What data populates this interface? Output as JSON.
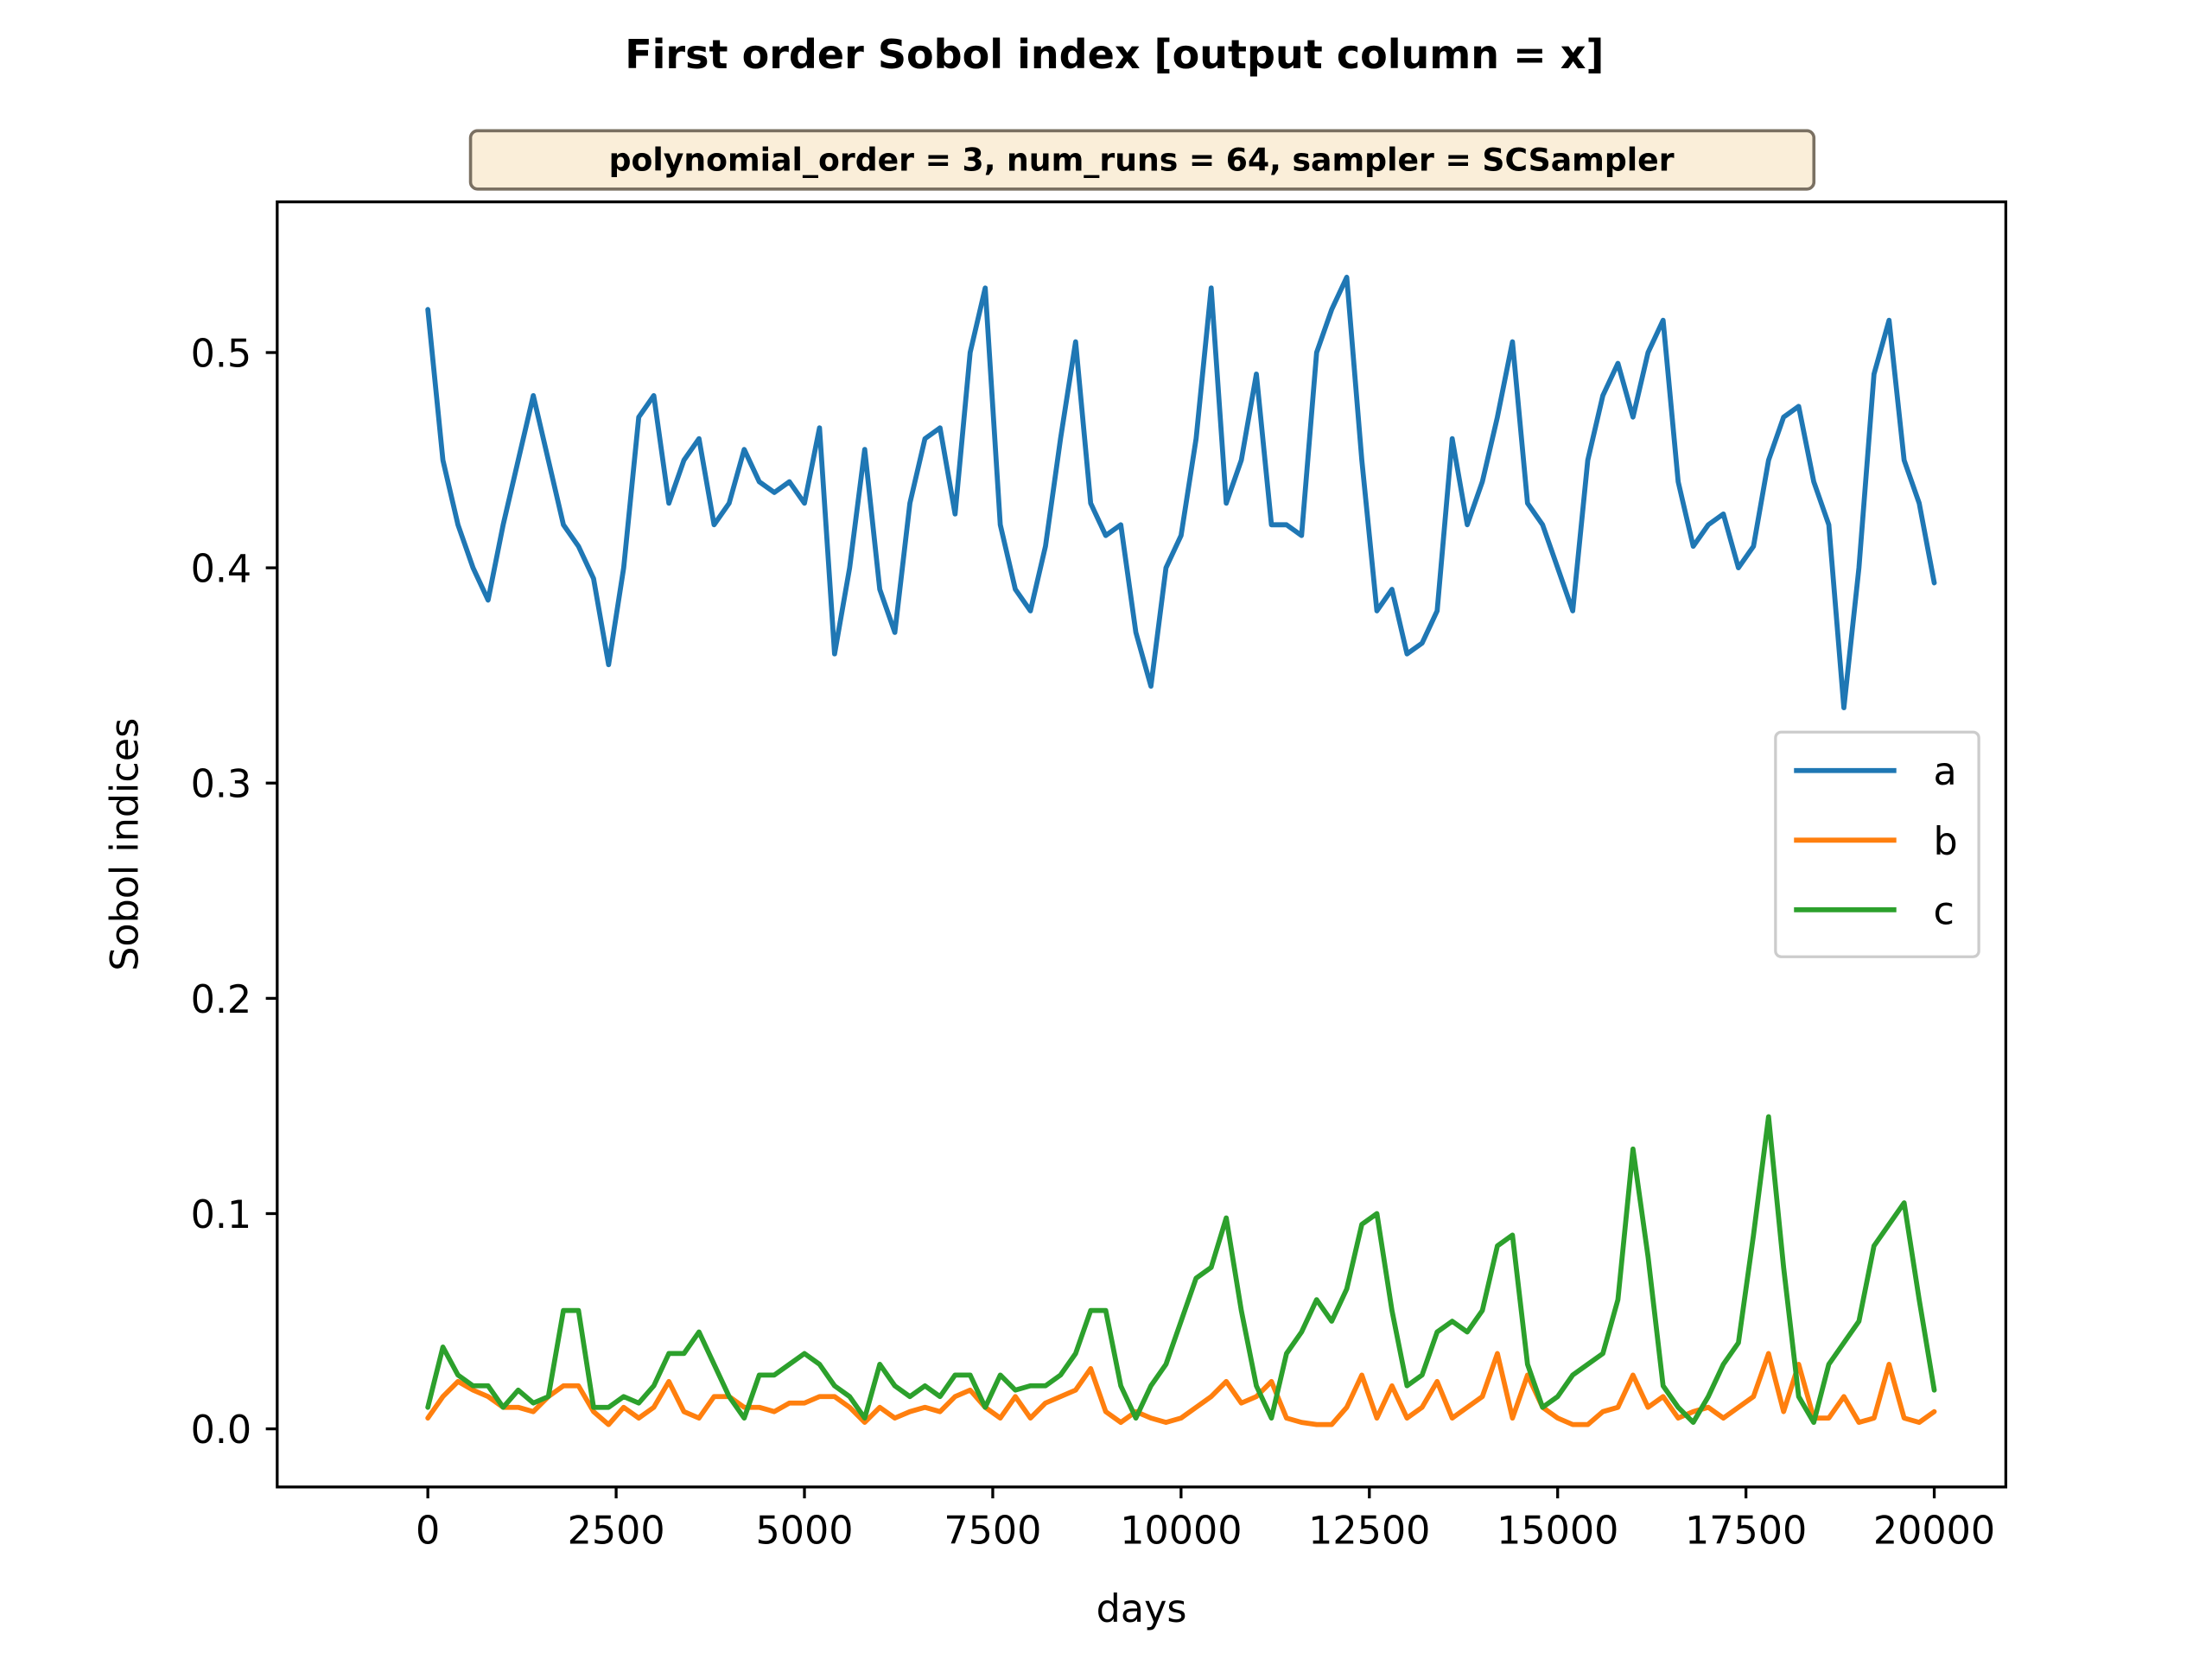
{
  "chart_data": {
    "type": "line",
    "title": "First order Sobol index [output column = x]",
    "subtitle": "polynomial_order = 3, num_runs = 64, sampler = SCSampler",
    "xlabel": "days",
    "ylabel": "Sobol indices",
    "xlim": [
      -2000,
      20950
    ],
    "ylim": [
      -0.027,
      0.57
    ],
    "x_ticks": [
      0,
      2500,
      5000,
      7500,
      10000,
      12500,
      15000,
      17500,
      20000
    ],
    "y_ticks": [
      0.0,
      0.1,
      0.2,
      0.3,
      0.4,
      0.5
    ],
    "x_tick_labels": [
      "0",
      "2500",
      "5000",
      "7500",
      "10000",
      "12500",
      "15000",
      "17500",
      "20000"
    ],
    "y_tick_labels": [
      "0.0",
      "0.1",
      "0.2",
      "0.3",
      "0.4",
      "0.5"
    ],
    "grid": false,
    "legend_position": "right",
    "series": [
      {
        "name": "a",
        "color": "#1f77b4",
        "x": [
          0,
          200,
          400,
          600,
          800,
          1000,
          1200,
          1400,
          1600,
          1800,
          2000,
          2200,
          2400,
          2600,
          2800,
          3000,
          3200,
          3400,
          3600,
          3800,
          4000,
          4200,
          4400,
          4600,
          4800,
          5000,
          5200,
          5400,
          5600,
          5800,
          6000,
          6200,
          6400,
          6600,
          6800,
          7000,
          7200,
          7400,
          7600,
          7800,
          8000,
          8200,
          8400,
          8600,
          8800,
          9000,
          9200,
          9400,
          9600,
          9800,
          10000,
          10200,
          10400,
          10600,
          10800,
          11000,
          11200,
          11400,
          11600,
          11800,
          12000,
          12200,
          12400,
          12600,
          12800,
          13000,
          13200,
          13400,
          13600,
          13800,
          14000,
          14200,
          14400,
          14600,
          14800,
          15000,
          15200,
          15400,
          15600,
          15800,
          16000,
          16200,
          16400,
          16600,
          16800,
          17000,
          17200,
          17400,
          17600,
          17800,
          18000,
          18200,
          18400,
          18600,
          18800,
          19000,
          19200,
          19400,
          19600,
          19800,
          20000
        ],
        "values": [
          0.52,
          0.45,
          0.42,
          0.4,
          0.385,
          0.42,
          0.45,
          0.48,
          0.45,
          0.42,
          0.41,
          0.395,
          0.355,
          0.4,
          0.47,
          0.48,
          0.43,
          0.45,
          0.46,
          0.42,
          0.43,
          0.455,
          0.44,
          0.435,
          0.44,
          0.43,
          0.465,
          0.36,
          0.4,
          0.455,
          0.39,
          0.37,
          0.43,
          0.46,
          0.465,
          0.425,
          0.5,
          0.53,
          0.42,
          0.39,
          0.38,
          0.41,
          0.46,
          0.505,
          0.43,
          0.415,
          0.42,
          0.37,
          0.345,
          0.4,
          0.415,
          0.46,
          0.53,
          0.43,
          0.45,
          0.49,
          0.42,
          0.42,
          0.415,
          0.5,
          0.52,
          0.535,
          0.45,
          0.38,
          0.39,
          0.36,
          0.365,
          0.38,
          0.46,
          0.42,
          0.44,
          0.47,
          0.505,
          0.43,
          0.42,
          0.4,
          0.38,
          0.45,
          0.48,
          0.495,
          0.47,
          0.5,
          0.515,
          0.44,
          0.41,
          0.42,
          0.425,
          0.4,
          0.41,
          0.45,
          0.47,
          0.475,
          0.44,
          0.42,
          0.335,
          0.4,
          0.49,
          0.515,
          0.45,
          0.43,
          0.393
        ]
      },
      {
        "name": "b",
        "color": "#ff7f0e",
        "x": [
          0,
          200,
          400,
          600,
          800,
          1000,
          1200,
          1400,
          1600,
          1800,
          2000,
          2200,
          2400,
          2600,
          2800,
          3000,
          3200,
          3400,
          3600,
          3800,
          4000,
          4200,
          4400,
          4600,
          4800,
          5000,
          5200,
          5400,
          5600,
          5800,
          6000,
          6200,
          6400,
          6600,
          6800,
          7000,
          7200,
          7400,
          7600,
          7800,
          8000,
          8200,
          8400,
          8600,
          8800,
          9000,
          9200,
          9400,
          9600,
          9800,
          10000,
          10200,
          10400,
          10600,
          10800,
          11000,
          11200,
          11400,
          11600,
          11800,
          12000,
          12200,
          12400,
          12600,
          12800,
          13000,
          13200,
          13400,
          13600,
          13800,
          14000,
          14200,
          14400,
          14600,
          14800,
          15000,
          15200,
          15400,
          15600,
          15800,
          16000,
          16200,
          16400,
          16600,
          16800,
          17000,
          17200,
          17400,
          17600,
          17800,
          18000,
          18200,
          18400,
          18600,
          18800,
          19000,
          19200,
          19400,
          19600,
          19800,
          20000
        ],
        "values": [
          0.005,
          0.015,
          0.022,
          0.018,
          0.015,
          0.01,
          0.01,
          0.008,
          0.015,
          0.02,
          0.02,
          0.008,
          0.002,
          0.01,
          0.005,
          0.01,
          0.022,
          0.008,
          0.005,
          0.015,
          0.015,
          0.01,
          0.01,
          0.008,
          0.012,
          0.012,
          0.015,
          0.015,
          0.01,
          0.003,
          0.01,
          0.005,
          0.008,
          0.01,
          0.008,
          0.015,
          0.018,
          0.01,
          0.005,
          0.015,
          0.005,
          0.012,
          0.015,
          0.018,
          0.028,
          0.008,
          0.003,
          0.008,
          0.005,
          0.003,
          0.005,
          0.01,
          0.015,
          0.022,
          0.012,
          0.015,
          0.022,
          0.005,
          0.003,
          0.002,
          0.002,
          0.01,
          0.025,
          0.005,
          0.02,
          0.005,
          0.01,
          0.022,
          0.005,
          0.01,
          0.015,
          0.035,
          0.005,
          0.025,
          0.01,
          0.005,
          0.002,
          0.002,
          0.008,
          0.01,
          0.025,
          0.01,
          0.015,
          0.005,
          0.008,
          0.01,
          0.005,
          0.01,
          0.015,
          0.035,
          0.008,
          0.03,
          0.005,
          0.005,
          0.015,
          0.003,
          0.005,
          0.03,
          0.005,
          0.003,
          0.008
        ]
      },
      {
        "name": "c",
        "color": "#2ca02c",
        "x": [
          0,
          200,
          400,
          600,
          800,
          1000,
          1200,
          1400,
          1600,
          1800,
          2000,
          2200,
          2400,
          2600,
          2800,
          3000,
          3200,
          3400,
          3600,
          3800,
          4000,
          4200,
          4400,
          4600,
          4800,
          5000,
          5200,
          5400,
          5600,
          5800,
          6000,
          6200,
          6400,
          6600,
          6800,
          7000,
          7200,
          7400,
          7600,
          7800,
          8000,
          8200,
          8400,
          8600,
          8800,
          9000,
          9200,
          9400,
          9600,
          9800,
          10000,
          10200,
          10400,
          10600,
          10800,
          11000,
          11200,
          11400,
          11600,
          11800,
          12000,
          12200,
          12400,
          12600,
          12800,
          13000,
          13200,
          13400,
          13600,
          13800,
          14000,
          14200,
          14400,
          14600,
          14800,
          15000,
          15200,
          15400,
          15600,
          15800,
          16000,
          16200,
          16400,
          16600,
          16800,
          17000,
          17200,
          17400,
          17600,
          17800,
          18000,
          18200,
          18400,
          18600,
          18800,
          19000,
          19200,
          19400,
          19600,
          19800,
          20000
        ],
        "values": [
          0.01,
          0.038,
          0.025,
          0.02,
          0.02,
          0.01,
          0.018,
          0.012,
          0.015,
          0.055,
          0.055,
          0.01,
          0.01,
          0.015,
          0.012,
          0.02,
          0.035,
          0.035,
          0.045,
          0.03,
          0.015,
          0.005,
          0.025,
          0.025,
          0.03,
          0.035,
          0.03,
          0.02,
          0.015,
          0.005,
          0.03,
          0.02,
          0.015,
          0.02,
          0.015,
          0.025,
          0.025,
          0.01,
          0.025,
          0.018,
          0.02,
          0.02,
          0.025,
          0.035,
          0.055,
          0.055,
          0.02,
          0.005,
          0.02,
          0.03,
          0.05,
          0.07,
          0.075,
          0.098,
          0.055,
          0.02,
          0.005,
          0.035,
          0.045,
          0.06,
          0.05,
          0.065,
          0.095,
          0.1,
          0.055,
          0.02,
          0.025,
          0.045,
          0.05,
          0.045,
          0.055,
          0.085,
          0.09,
          0.03,
          0.01,
          0.015,
          0.025,
          0.03,
          0.035,
          0.06,
          0.13,
          0.08,
          0.02,
          0.01,
          0.003,
          0.015,
          0.03,
          0.04,
          0.09,
          0.145,
          0.075,
          0.015,
          0.003,
          0.03,
          0.04,
          0.05,
          0.085,
          0.095,
          0.105,
          0.06,
          0.018
        ]
      }
    ]
  }
}
